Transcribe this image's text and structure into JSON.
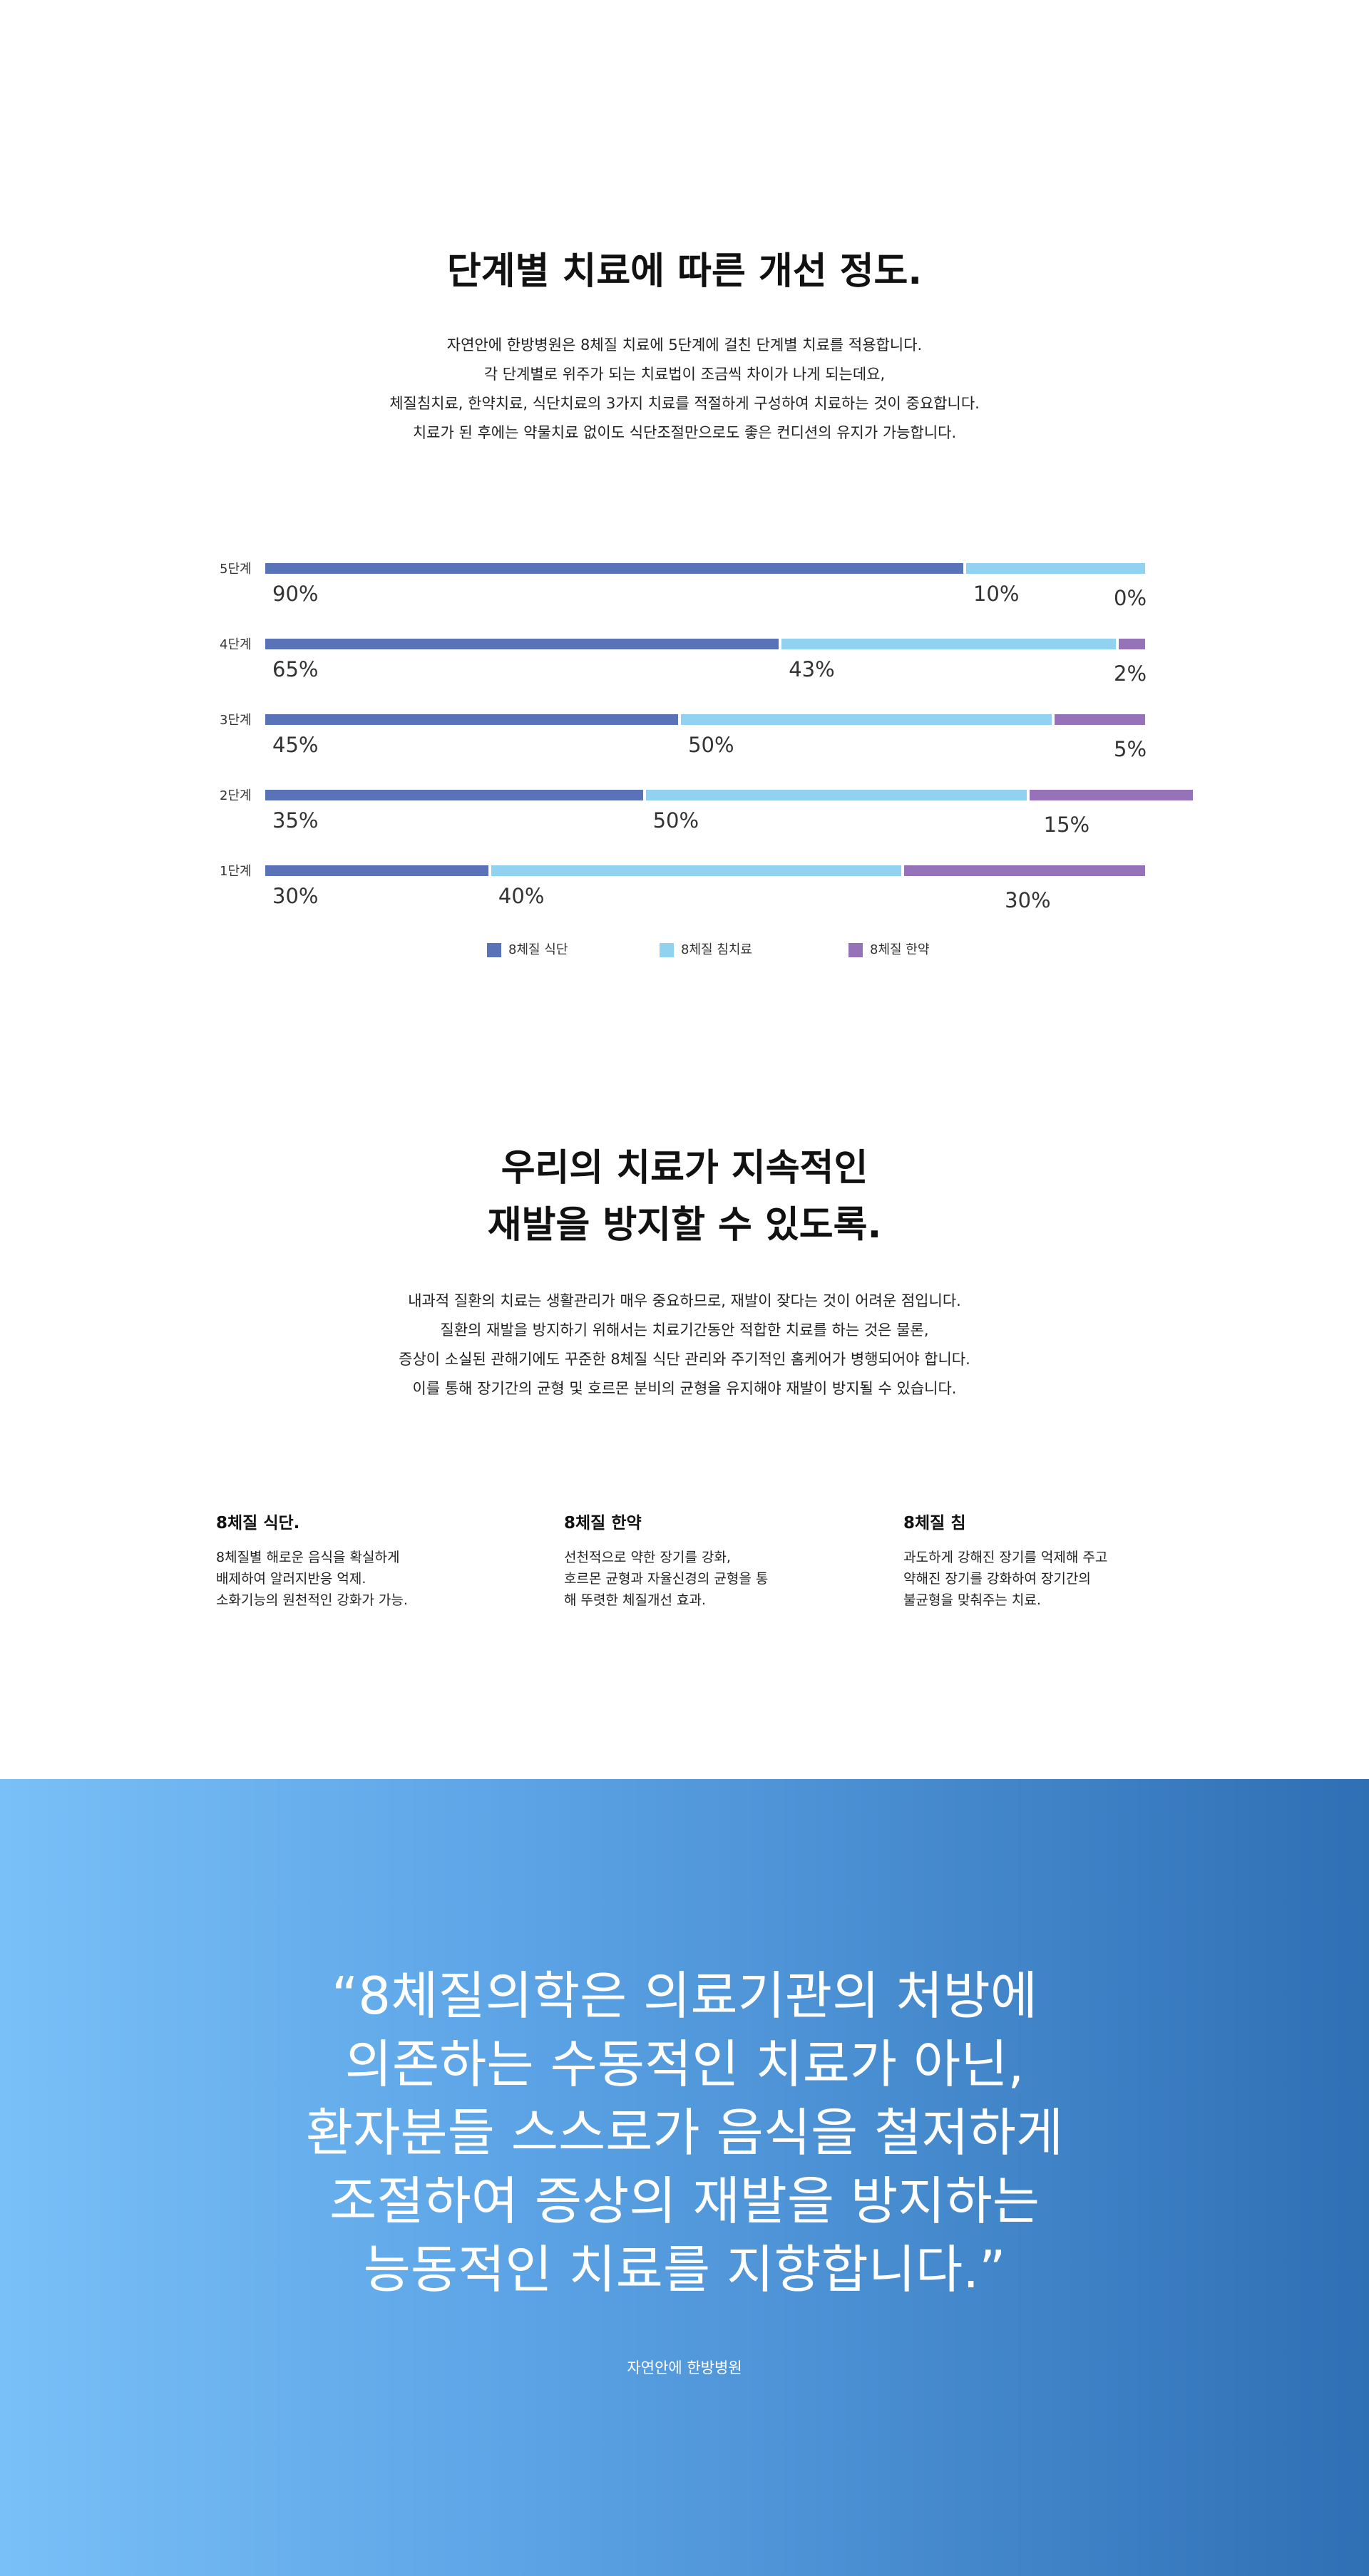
{
  "section1": {
    "title": "단계별 치료에 따른 개선 정도.",
    "lines": [
      "자연안에 한방병원은 8체질 치료에 5단계에 걸친 단계별 치료를 적용합니다.",
      "각 단계별로 위주가 되는 치료법이 조금씩 차이가 나게 되는데요,",
      "체질침치료, 한약치료, 식단치료의 3가지 치료를 적절하게 구성하여 치료하는 것이 중요합니다.",
      "치료가 된 후에는 약물치료 없이도 식단조절만으로도 좋은 컨디션의 유지가 가능합니다."
    ]
  },
  "chart_data": {
    "type": "bar",
    "orientation": "horizontal-stacked",
    "categories": [
      "5단계",
      "4단계",
      "3단계",
      "2단계",
      "1단계"
    ],
    "series": [
      {
        "name": "8체질 식단",
        "color": "#5a73b8",
        "values": [
          90,
          65,
          45,
          35,
          30
        ],
        "labels": [
          "90%",
          "65%",
          "45%",
          "35%",
          "30%"
        ]
      },
      {
        "name": "8체질 침치료",
        "color": "#92d2f1",
        "values": [
          10,
          43,
          50,
          50,
          40
        ],
        "labels": [
          "10%",
          "43%",
          "50%",
          "50%",
          "40%"
        ]
      },
      {
        "name": "8체질 한약",
        "color": "#9672b9",
        "values": [
          0,
          2,
          5,
          15,
          30
        ],
        "labels": [
          "0%",
          "2%",
          "5%",
          "15%",
          "30%"
        ]
      }
    ],
    "bar_widths": [
      [
        79.4,
        20.6,
        0
      ],
      [
        58.5,
        38.2,
        3.3
      ],
      [
        47.1,
        42.3,
        10.6
      ],
      [
        43.1,
        43.5,
        18.8
      ],
      [
        25.6,
        46.8,
        27.6
      ]
    ],
    "legend": [
      "8체질 식단",
      "8체질 침치료",
      "8체질 한약"
    ],
    "legend_position": "bottom-center"
  },
  "section2": {
    "title_lines": [
      "우리의 치료가 지속적인",
      "재발을 방지할 수 있도록."
    ],
    "lines": [
      "내과적 질환의 치료는 생활관리가 매우 중요하므로, 재발이 잦다는 것이 어려운 점입니다.",
      "질환의 재발을 방지하기 위해서는 치료기간동안 적합한 치료를 하는 것은 물론,",
      "증상이 소실된 관해기에도 꾸준한 8체질 식단 관리와 주기적인 홈케어가 병행되어야 합니다.",
      "이를 통해  장기간의 균형 및 호르몬 분비의 균형을 유지해야 재발이 방지될 수 있습니다."
    ]
  },
  "features": [
    {
      "title": "8체질 식단.",
      "lines": [
        "8체질별 해로운 음식을 확실하게",
        "배제하여 알러지반응 억제.",
        "소화기능의 원천적인 강화가 가능."
      ]
    },
    {
      "title": "8체질 한약",
      "lines": [
        "선천적으로 약한 장기를 강화,",
        "호르몬 균형과 자율신경의 균형을 통",
        "해 뚜렷한 체질개선 효과."
      ]
    },
    {
      "title": "8체질 침",
      "lines": [
        "과도하게 강해진 장기를 억제해 주고",
        "약해진 장기를 강화하여 장기간의",
        "불균형을 맞춰주는 치료."
      ]
    }
  ],
  "quote": {
    "lines": [
      "“8체질의학은 의료기관의 처방에",
      "의존하는 수동적인 치료가 아닌,",
      "환자분들 스스로가 음식을 철저하게",
      "조절하여 증상의 재발을 방지하는",
      "능동적인 치료를 지향합니다.”"
    ],
    "source": "자연안에 한방병원"
  }
}
